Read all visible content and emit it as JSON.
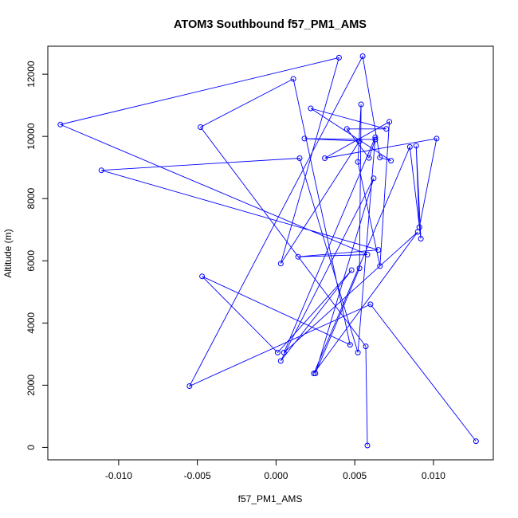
{
  "chart_data": {
    "type": "line",
    "title": "ATOM3 Southbound f57_PM1_AMS",
    "xlabel": "f57_PM1_AMS",
    "ylabel": "Altitude (m)",
    "xlim": [
      -0.0145,
      0.0138
    ],
    "ylim": [
      -400,
      12900
    ],
    "xticks": [
      -0.01,
      -0.005,
      0.0,
      0.005,
      0.01
    ],
    "xtick_labels": [
      "-0.010",
      "-0.005",
      "0.000",
      "0.005",
      "0.010"
    ],
    "yticks": [
      0,
      2000,
      4000,
      6000,
      8000,
      10000,
      12000
    ],
    "ytick_labels": [
      "0",
      "2000",
      "4000",
      "6000",
      "8000",
      "10000",
      "12000"
    ],
    "grid": false,
    "legend": "none",
    "colors": {
      "series": "#0000ff"
    },
    "series": [
      {
        "marker": "open-circle",
        "points": [
          [
            0.0058,
            60
          ],
          [
            0.0057,
            3250
          ],
          [
            -0.0048,
            10300
          ],
          [
            0.0011,
            11850
          ],
          [
            0.0047,
            3300
          ],
          [
            -0.0047,
            5500
          ],
          [
            0.0001,
            3050
          ],
          [
            0.0048,
            5700
          ],
          [
            0.0003,
            2780
          ],
          [
            0.0062,
            8650
          ],
          [
            0.0025,
            2380
          ],
          [
            0.0053,
            5760
          ],
          [
            0.0054,
            11030
          ],
          [
            0.0052,
            9180
          ],
          [
            0.0066,
            5830
          ],
          [
            0.0072,
            10470
          ],
          [
            0.0031,
            9300
          ],
          [
            0.0102,
            9930
          ],
          [
            0.0091,
            7080
          ],
          [
            0.0089,
            9700
          ],
          [
            0.0092,
            6710
          ],
          [
            0.0085,
            9660
          ],
          [
            0.0024,
            2380
          ],
          [
            0.009,
            6930
          ],
          [
            0.0005,
            3050
          ],
          [
            0.0063,
            9970
          ],
          [
            0.0052,
            3050
          ],
          [
            0.0015,
            9300
          ],
          [
            -0.0111,
            8910
          ],
          [
            0.0065,
            6350
          ],
          [
            0.0014,
            6130
          ],
          [
            0.0058,
            6200
          ],
          [
            -0.0137,
            10380
          ],
          [
            0.004,
            12530
          ],
          [
            0.0003,
            5910
          ],
          [
            0.0053,
            9850
          ],
          [
            0.0018,
            9930
          ],
          [
            0.0063,
            9900
          ],
          [
            0.0059,
            9310
          ],
          [
            0.0045,
            10240
          ],
          [
            0.007,
            10240
          ],
          [
            0.0022,
            10900
          ],
          [
            0.0073,
            9220
          ],
          [
            0.0066,
            9320
          ],
          [
            0.0055,
            12580
          ],
          [
            -0.0055,
            1970
          ],
          [
            0.006,
            4600
          ],
          [
            0.0127,
            200
          ]
        ]
      }
    ]
  }
}
